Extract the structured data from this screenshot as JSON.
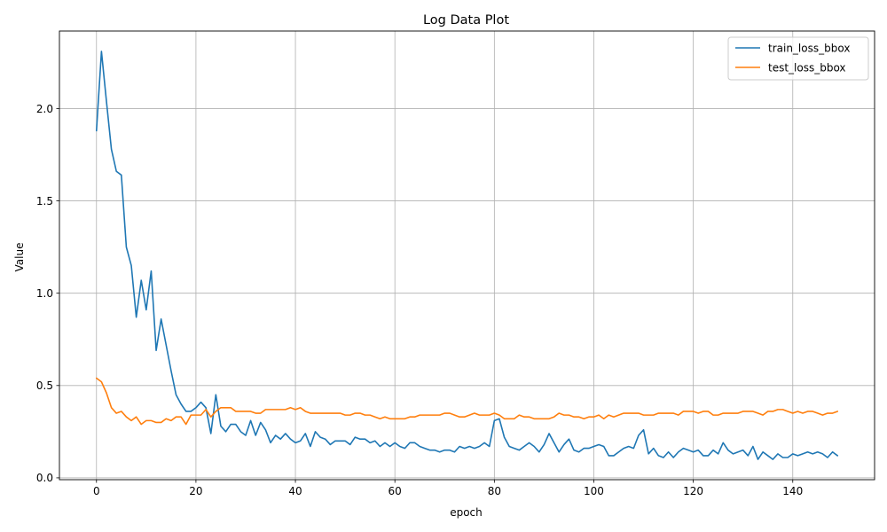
{
  "chart_data": {
    "type": "line",
    "title": "Log Data Plot",
    "xlabel": "epoch",
    "ylabel": "Value",
    "xlim": [
      -7.45,
      156.45
    ],
    "ylim": [
      -0.01,
      2.42
    ],
    "xticks": [
      0,
      20,
      40,
      60,
      80,
      100,
      120,
      140
    ],
    "yticks": [
      0.0,
      0.5,
      1.0,
      1.5,
      2.0
    ],
    "ytick_labels": [
      "0.0",
      "0.5",
      "1.0",
      "1.5",
      "2.0"
    ],
    "grid": true,
    "legend_position": "top-right",
    "series": [
      {
        "name": "train_loss_bbox",
        "color": "#1f77b4",
        "values": [
          1.88,
          2.31,
          2.04,
          1.78,
          1.66,
          1.64,
          1.25,
          1.15,
          0.87,
          1.07,
          0.91,
          1.12,
          0.69,
          0.86,
          0.72,
          0.58,
          0.45,
          0.4,
          0.36,
          0.36,
          0.38,
          0.41,
          0.38,
          0.24,
          0.45,
          0.28,
          0.25,
          0.29,
          0.29,
          0.25,
          0.23,
          0.31,
          0.23,
          0.3,
          0.26,
          0.19,
          0.23,
          0.21,
          0.24,
          0.21,
          0.19,
          0.2,
          0.24,
          0.17,
          0.25,
          0.22,
          0.21,
          0.18,
          0.2,
          0.2,
          0.2,
          0.18,
          0.22,
          0.21,
          0.21,
          0.19,
          0.2,
          0.17,
          0.19,
          0.17,
          0.19,
          0.17,
          0.16,
          0.19,
          0.19,
          0.17,
          0.16,
          0.15,
          0.15,
          0.14,
          0.15,
          0.15,
          0.14,
          0.17,
          0.16,
          0.17,
          0.16,
          0.17,
          0.19,
          0.17,
          0.31,
          0.32,
          0.22,
          0.17,
          0.16,
          0.15,
          0.17,
          0.19,
          0.17,
          0.14,
          0.18,
          0.24,
          0.19,
          0.14,
          0.18,
          0.21,
          0.15,
          0.14,
          0.16,
          0.16,
          0.17,
          0.18,
          0.17,
          0.12,
          0.12,
          0.14,
          0.16,
          0.17,
          0.16,
          0.23,
          0.26,
          0.13,
          0.16,
          0.12,
          0.11,
          0.14,
          0.11,
          0.14,
          0.16,
          0.15,
          0.14,
          0.15,
          0.12,
          0.12,
          0.15,
          0.13,
          0.19,
          0.15,
          0.13,
          0.14,
          0.15,
          0.12,
          0.17,
          0.1,
          0.14,
          0.12,
          0.1,
          0.13,
          0.11,
          0.11,
          0.13,
          0.12,
          0.13,
          0.14,
          0.13,
          0.14,
          0.13,
          0.11,
          0.14,
          0.12
        ]
      },
      {
        "name": "test_loss_bbox",
        "color": "#ff7f0e",
        "values": [
          0.54,
          0.52,
          0.46,
          0.38,
          0.35,
          0.36,
          0.33,
          0.31,
          0.33,
          0.29,
          0.31,
          0.31,
          0.3,
          0.3,
          0.32,
          0.31,
          0.33,
          0.33,
          0.29,
          0.34,
          0.34,
          0.34,
          0.37,
          0.33,
          0.36,
          0.38,
          0.38,
          0.38,
          0.36,
          0.36,
          0.36,
          0.36,
          0.35,
          0.35,
          0.37,
          0.37,
          0.37,
          0.37,
          0.37,
          0.38,
          0.37,
          0.38,
          0.36,
          0.35,
          0.35,
          0.35,
          0.35,
          0.35,
          0.35,
          0.35,
          0.34,
          0.34,
          0.35,
          0.35,
          0.34,
          0.34,
          0.33,
          0.32,
          0.33,
          0.32,
          0.32,
          0.32,
          0.32,
          0.33,
          0.33,
          0.34,
          0.34,
          0.34,
          0.34,
          0.34,
          0.35,
          0.35,
          0.34,
          0.33,
          0.33,
          0.34,
          0.35,
          0.34,
          0.34,
          0.34,
          0.35,
          0.34,
          0.32,
          0.32,
          0.32,
          0.34,
          0.33,
          0.33,
          0.32,
          0.32,
          0.32,
          0.32,
          0.33,
          0.35,
          0.34,
          0.34,
          0.33,
          0.33,
          0.32,
          0.33,
          0.33,
          0.34,
          0.32,
          0.34,
          0.33,
          0.34,
          0.35,
          0.35,
          0.35,
          0.35,
          0.34,
          0.34,
          0.34,
          0.35,
          0.35,
          0.35,
          0.35,
          0.34,
          0.36,
          0.36,
          0.36,
          0.35,
          0.36,
          0.36,
          0.34,
          0.34,
          0.35,
          0.35,
          0.35,
          0.35,
          0.36,
          0.36,
          0.36,
          0.35,
          0.34,
          0.36,
          0.36,
          0.37,
          0.37,
          0.36,
          0.35,
          0.36,
          0.35,
          0.36,
          0.36,
          0.35,
          0.34,
          0.35,
          0.35,
          0.36
        ]
      }
    ]
  }
}
